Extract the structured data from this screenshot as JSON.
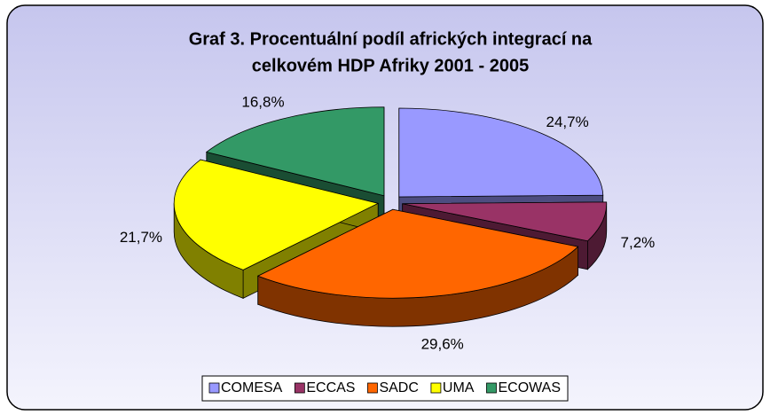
{
  "chart_data": {
    "type": "pie3d",
    "title": [
      "Graf 3. Procentuální podíl afrických integrací na",
      "celkovém  HDP Afriky 2001 - 2005"
    ],
    "categories": [
      "COMESA",
      "ECCAS",
      "SADC",
      "UMA",
      "ECOWAS"
    ],
    "values": [
      24.7,
      7.2,
      29.6,
      21.7,
      16.8
    ],
    "value_labels": [
      "24,7%",
      "7,2%",
      "29,6%",
      "21,7%",
      "16,8%"
    ],
    "colors": [
      "#9999ff",
      "#993366",
      "#ff6600",
      "#ffff00",
      "#339966"
    ],
    "legend": "bottom"
  }
}
